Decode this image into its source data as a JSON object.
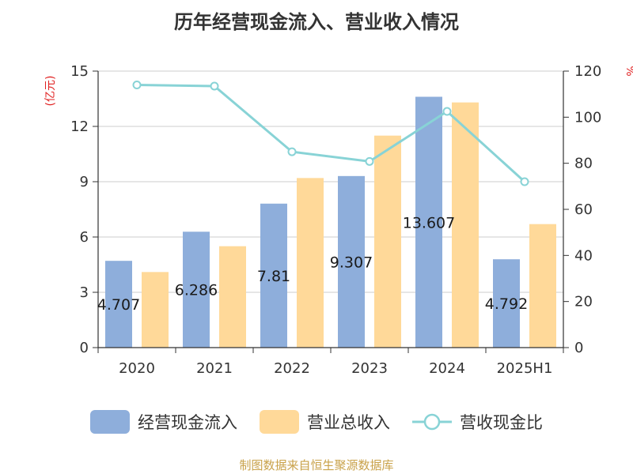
{
  "title": "历年经营现金流入、营业收入情况",
  "left_unit": "(亿元)",
  "right_unit": "%",
  "source": "制图数据来自恒生聚源数据库",
  "colors": {
    "cash_inflow": "#8eaedb",
    "revenue": "#ffd999",
    "ratio": "#88d3d6"
  },
  "chart_data": {
    "type": "bar",
    "title": "历年经营现金流入、营业收入情况",
    "categories": [
      "2020",
      "2021",
      "2022",
      "2023",
      "2024",
      "2025H1"
    ],
    "series": [
      {
        "name": "经营现金流入",
        "axis": "left",
        "values": [
          4.707,
          6.286,
          7.81,
          9.307,
          13.607,
          4.792
        ],
        "labels": [
          "4.707",
          "6.286",
          "7.81",
          "9.307",
          "13.607",
          "4.792"
        ]
      },
      {
        "name": "营业总收入",
        "axis": "left",
        "values": [
          4.1,
          5.5,
          9.2,
          11.5,
          13.3,
          6.7
        ]
      },
      {
        "name": "营收现金比",
        "axis": "right",
        "type": "line",
        "values": [
          114,
          113.5,
          85,
          80.8,
          102.5,
          72
        ]
      }
    ],
    "y_left": {
      "lim": [
        0,
        15
      ],
      "ticks": [
        0,
        3,
        6,
        9,
        12,
        15
      ]
    },
    "y_right": {
      "lim": [
        0,
        120
      ],
      "ticks": [
        0,
        20,
        40,
        60,
        80,
        100,
        120
      ]
    },
    "grid": true,
    "legend": "bottom"
  }
}
